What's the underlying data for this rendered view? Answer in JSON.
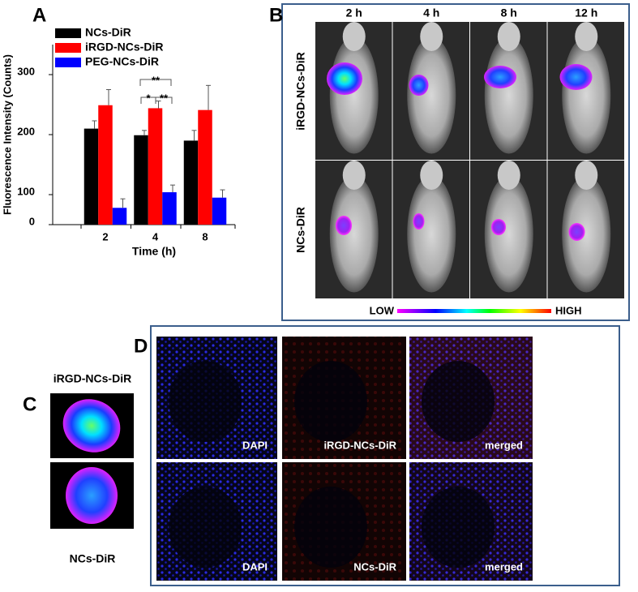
{
  "chart_data": {
    "type": "bar",
    "panel_label": "A",
    "xlabel": "Time (h)",
    "ylabel": "Fluorescence Intensity  (Counts)",
    "categories": [
      "2",
      "4",
      "8"
    ],
    "series": [
      {
        "name": "NCs-DiR",
        "color": "#000000",
        "values": [
          210,
          199,
          190
        ],
        "errors": [
          13,
          8,
          17
        ]
      },
      {
        "name": "iRGD-NCs-DiR",
        "color": "#ff0000",
        "values": [
          249,
          244,
          241
        ],
        "errors": [
          26,
          12,
          41
        ]
      },
      {
        "name": "PEG-NCs-DiR",
        "color": "#0000ff",
        "values": [
          78,
          104,
          95
        ],
        "errors": [
          15,
          12,
          13
        ]
      }
    ],
    "ylim": [
      50,
      350
    ],
    "yticks": [
      {
        "value": 50,
        "label": "0"
      },
      100,
      200,
      300
    ],
    "annotations": [
      "**",
      "*",
      "**"
    ]
  },
  "panel_b": {
    "label": "B",
    "columns": [
      "2 h",
      "4 h",
      "8 h",
      "12 h"
    ],
    "rows": [
      "iRGD-NCs-DiR",
      "NCs-DiR"
    ],
    "colorbar": [
      "LOW",
      "HIGH"
    ]
  },
  "panel_c": {
    "label": "C",
    "rows": [
      "iRGD-NCs-DiR",
      "NCs-DiR"
    ]
  },
  "panel_d": {
    "label": "D",
    "captions": [
      [
        "DAPI",
        "iRGD-NCs-DiR",
        "merged"
      ],
      [
        "DAPI",
        "NCs-DiR",
        "merged"
      ]
    ]
  }
}
